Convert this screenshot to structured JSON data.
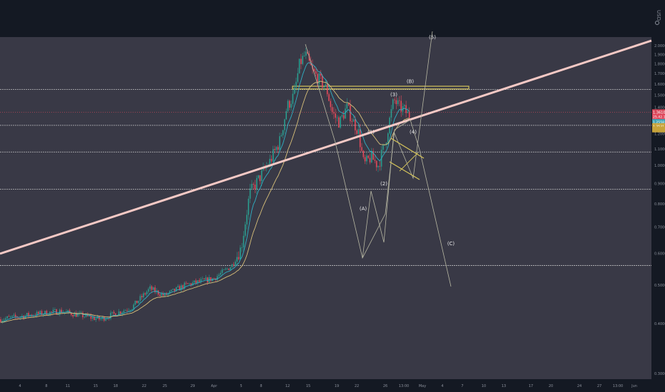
{
  "header": {
    "currency": "USD"
  },
  "chart_data": {
    "type": "candlestick",
    "title": "",
    "xlabel": "",
    "ylabel": "",
    "y_scale": "log",
    "ylim": [
      0.29,
      2.1
    ],
    "price_ticks": [
      "2.00000",
      "1.90000",
      "1.80000",
      "1.70000",
      "1.60000",
      "1.50000",
      "1.40000",
      "1.30000",
      "1.20000",
      "1.10000",
      "1.00000",
      "0.90000",
      "0.80000",
      "0.70000",
      "0.60000",
      "0.50000",
      "0.40000",
      "0.30000"
    ],
    "x_ticks": [
      {
        "label": "4",
        "x": 28
      },
      {
        "label": "8",
        "x": 65
      },
      {
        "label": "11",
        "x": 95
      },
      {
        "label": "15",
        "x": 134
      },
      {
        "label": "18",
        "x": 162
      },
      {
        "label": "22",
        "x": 202
      },
      {
        "label": "25",
        "x": 231
      },
      {
        "label": "29",
        "x": 270
      },
      {
        "label": "Apr",
        "x": 300
      },
      {
        "label": "5",
        "x": 338
      },
      {
        "label": "8",
        "x": 366
      },
      {
        "label": "12",
        "x": 403
      },
      {
        "label": "15",
        "x": 432
      },
      {
        "label": "19",
        "x": 472
      },
      {
        "label": "22",
        "x": 500
      },
      {
        "label": "26",
        "x": 540
      },
      {
        "label": "13:00",
        "x": 566
      },
      {
        "label": "May",
        "x": 592
      },
      {
        "label": "4",
        "x": 620
      },
      {
        "label": "7",
        "x": 648
      },
      {
        "label": "10",
        "x": 678
      },
      {
        "label": "13",
        "x": 706
      },
      {
        "label": "17",
        "x": 744
      },
      {
        "label": "20",
        "x": 772
      },
      {
        "label": "24",
        "x": 812
      },
      {
        "label": "27",
        "x": 840
      },
      {
        "label": "13:00",
        "x": 866
      },
      {
        "label": "Jun",
        "x": 889
      }
    ],
    "horizontal_levels": [
      1.55,
      1.26,
      1.08,
      0.87,
      0.56
    ],
    "resistance_zone": [
      1.555,
      1.58
    ],
    "current_price": {
      "value": 1.36,
      "label": "1.36107"
    },
    "price_badges": [
      {
        "value": 1.325,
        "label": "25.42.12",
        "color": "#e0465a"
      },
      {
        "value": 1.285,
        "label": "1.2558",
        "color": "#3fa3b5"
      },
      {
        "value": 1.255,
        "label": "1.2531",
        "color": "#c7a33a"
      },
      {
        "value": 1.23,
        "label": "",
        "color": "#c7a33a"
      }
    ],
    "wave_labels": [
      {
        "label": "(1)",
        "x": 520,
        "price": 1.2
      },
      {
        "label": "(2)",
        "x": 538,
        "price": 0.89
      },
      {
        "label": "(3)",
        "x": 552,
        "price": 1.49
      },
      {
        "label": "(4)",
        "x": 579,
        "price": 1.2
      },
      {
        "label": "(5)",
        "x": 606,
        "price": 2.08
      },
      {
        "label": "(A)",
        "x": 509,
        "price": 0.77
      },
      {
        "label": "(B)",
        "x": 575,
        "price": 1.61
      },
      {
        "label": "(C)",
        "x": 632,
        "price": 0.63
      }
    ],
    "colors": {
      "background": "#141923",
      "chart_area": "#393946",
      "bull": "#2a9d8f",
      "bear": "#e44a5a",
      "trendline": "#f5c9c5",
      "zone": "#d4c35a",
      "ema_fast": "#2fb0c4",
      "ema_slow": "#d8c07a",
      "projection": "#b7b7a2",
      "current_price_line": "#d9475a"
    }
  }
}
